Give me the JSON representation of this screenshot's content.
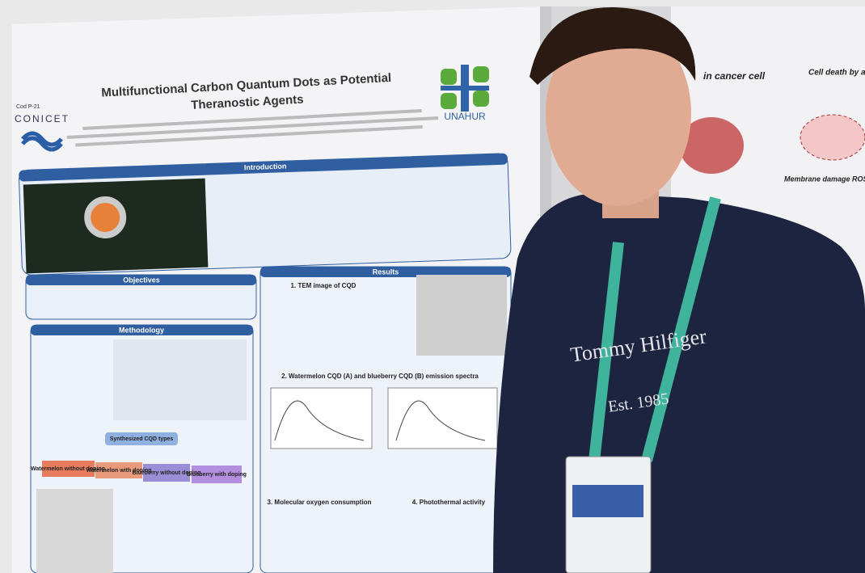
{
  "poster": {
    "code": "Cod P-21",
    "logo_left": "CONICET",
    "logo_right": "UNAHUR",
    "title_line1": "Multifunctional Carbon Quantum Dots as Potential",
    "title_line2": "Theranostic Agents",
    "sections": {
      "introduction": "Introduction",
      "objectives": "Objectives",
      "methodology": "Methodology",
      "results": "Results"
    },
    "results": {
      "r1": "1. TEM image of CQD",
      "r2": "2. Watermelon CQD (A) and blueberry CQD (B) emission spectra",
      "r3": "3. Molecular oxygen consumption",
      "r4": "4. Photothermal activity"
    },
    "cqd_types": {
      "title": "Synthesized CQD types",
      "items": [
        "Watermelon without doping",
        "Watermelon with doping",
        "Blueberry without doping",
        "Blueberry with doping"
      ]
    }
  },
  "right_poster": {
    "header": "in cancer cell",
    "cell": "Cell death by apoptosis",
    "membrane": "Membrane damage ROS"
  },
  "shirt": {
    "brand": "Tommy Hilfiger",
    "year": "Est. 1985"
  }
}
